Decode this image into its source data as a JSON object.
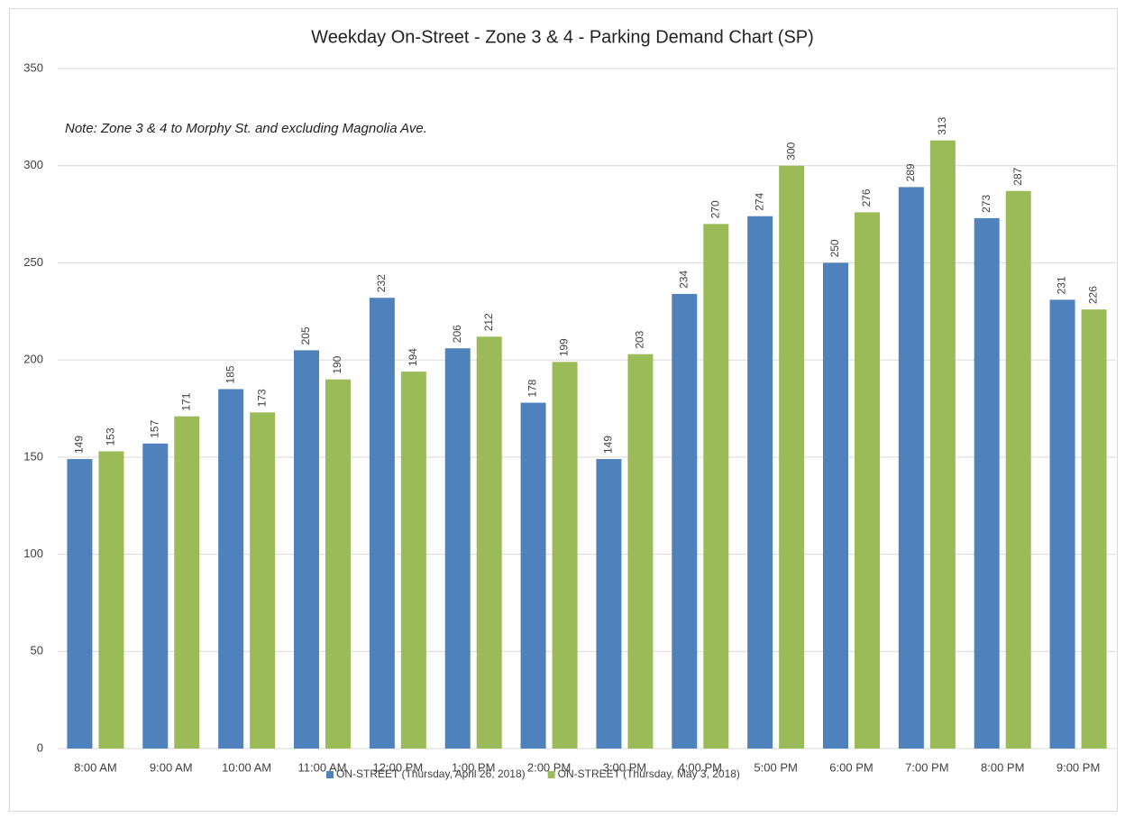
{
  "chart_data": {
    "type": "bar",
    "title": "Weekday On-Street - Zone 3 & 4 - Parking Demand Chart (SP)",
    "annotation": "Note:  Zone 3 & 4 to Morphy St. and excluding Magnolia Ave.",
    "categories": [
      "8:00 AM",
      "9:00 AM",
      "10:00 AM",
      "11:00 AM",
      "12:00 PM",
      "1:00 PM",
      "2:00 PM",
      "3:00 PM",
      "4:00 PM",
      "5:00 PM",
      "6:00 PM",
      "7:00 PM",
      "8:00 PM",
      "9:00 PM"
    ],
    "series": [
      {
        "name": "ON-STREET (Thursday, April 26, 2018)",
        "color": "#4f81bd",
        "values": [
          149,
          157,
          185,
          205,
          232,
          206,
          178,
          149,
          234,
          274,
          250,
          289,
          273,
          231
        ]
      },
      {
        "name": "ON-STREET (Thursday, May 3, 2018)",
        "color": "#9bbb59",
        "values": [
          153,
          171,
          173,
          190,
          194,
          212,
          199,
          203,
          270,
          300,
          276,
          313,
          287,
          226
        ]
      }
    ],
    "ylim": [
      0,
      350
    ],
    "yticks": [
      0,
      50,
      100,
      150,
      200,
      250,
      300,
      350
    ],
    "grid": true,
    "legend": "bottom"
  }
}
